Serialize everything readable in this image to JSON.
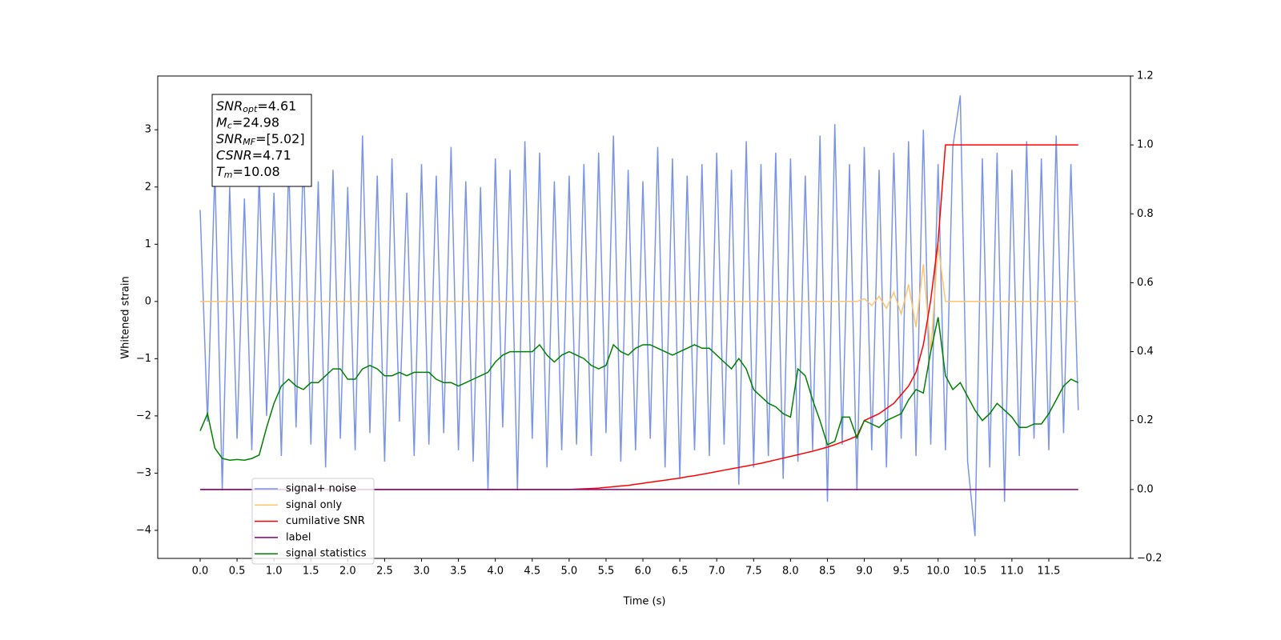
{
  "chart_data": {
    "type": "line",
    "xlabel": "Time (s)",
    "ylabel": "Whitened strain",
    "annotation_lines": [
      {
        "main": "SNR",
        "sub": "opt",
        "rest": "=4.61"
      },
      {
        "main": "M",
        "sub": "c",
        "rest": "=24.98"
      },
      {
        "main": "SNR",
        "sub": "MF",
        "rest": "=[5.02]"
      },
      {
        "main": "CSNR",
        "sub": null,
        "rest": "=4.71"
      },
      {
        "main": "T",
        "sub": "m",
        "rest": "=10.08"
      }
    ],
    "xlim": [
      -0.575,
      12.607
    ],
    "xticks": [
      {
        "value": 0,
        "label": "0.0"
      },
      0.5,
      {
        "value": 1,
        "label": "1.0"
      },
      1.5,
      {
        "value": 2,
        "label": "2.0"
      },
      2.5,
      {
        "value": 3,
        "label": "3.0"
      },
      3.5,
      {
        "value": 4,
        "label": "4.0"
      },
      4.5,
      {
        "value": 5,
        "label": "5.0"
      },
      5.5,
      {
        "value": 6,
        "label": "6.0"
      },
      6.5,
      {
        "value": 7,
        "label": "7.0"
      },
      7.5,
      {
        "value": 8,
        "label": "8.0"
      },
      8.5,
      {
        "value": 9,
        "label": "9.0"
      },
      9.5,
      {
        "value": 10,
        "label": "10.0"
      },
      10.5,
      {
        "value": 11,
        "label": "11.0"
      },
      11.5
    ],
    "ylim": [
      -4.49,
      3.94
    ],
    "yticks": [
      {
        "value": -4,
        "label": "−4"
      },
      {
        "value": -3,
        "label": "−3"
      },
      {
        "value": -2,
        "label": "−2"
      },
      {
        "value": -1,
        "label": "−1"
      },
      0,
      1,
      2,
      3
    ],
    "y2lim": [
      -0.2,
      1.2
    ],
    "y2ticks": [
      {
        "value": -0.2,
        "label": "−0.2"
      },
      {
        "value": 0,
        "label": "0.0"
      },
      0.2,
      0.4,
      0.6,
      0.8,
      {
        "value": 1,
        "label": "1.0"
      },
      1.2
    ],
    "legend": "lower left",
    "x": [
      0,
      0.1,
      0.2,
      0.3,
      0.4,
      0.5,
      0.6,
      0.7,
      0.8,
      0.9,
      1,
      1.1,
      1.2,
      1.3,
      1.4,
      1.5,
      1.6,
      1.7,
      1.8,
      1.9,
      2,
      2.1,
      2.2,
      2.3,
      2.4,
      2.5,
      2.6,
      2.7,
      2.8,
      2.9,
      3,
      3.1,
      3.2,
      3.3,
      3.4,
      3.5,
      3.6,
      3.7,
      3.8,
      3.9,
      4,
      4.1,
      4.2,
      4.3,
      4.4,
      4.5,
      4.6,
      4.7,
      4.8,
      4.9,
      5,
      5.1,
      5.2,
      5.3,
      5.4,
      5.5,
      5.6,
      5.7,
      5.8,
      5.9,
      6,
      6.1,
      6.2,
      6.3,
      6.4,
      6.5,
      6.6,
      6.7,
      6.8,
      6.9,
      7,
      7.1,
      7.2,
      7.3,
      7.4,
      7.5,
      7.6,
      7.7,
      7.8,
      7.9,
      8,
      8.1,
      8.2,
      8.3,
      8.4,
      8.5,
      8.6,
      8.7,
      8.8,
      8.9,
      9,
      9.1,
      9.2,
      9.3,
      9.4,
      9.5,
      9.6,
      9.7,
      9.8,
      9.9,
      10,
      10.1,
      10.2,
      10.3,
      10.4,
      10.5,
      10.6,
      10.7,
      10.8,
      10.9,
      11,
      11.1,
      11.2,
      11.3,
      11.4,
      11.5,
      11.6,
      11.7,
      11.8,
      11.9
    ],
    "series": [
      {
        "name": "signal+ noise",
        "color": "#7b95e6",
        "values": [
          1.6,
          -2.1,
          2.3,
          -3.3,
          2.0,
          -2.4,
          1.8,
          -2.6,
          2.2,
          -2.0,
          1.9,
          -2.7,
          2.4,
          -2.2,
          2.6,
          -2.5,
          2.1,
          -2.9,
          2.3,
          -2.4,
          2.0,
          -2.6,
          2.9,
          -2.3,
          2.2,
          -2.8,
          2.5,
          -2.1,
          1.9,
          -2.7,
          2.4,
          -2.5,
          2.2,
          -2.3,
          2.7,
          -2.6,
          2.1,
          -2.8,
          2.0,
          -3.3,
          2.5,
          -2.2,
          2.3,
          -3.3,
          2.8,
          -2.4,
          2.6,
          -2.9,
          2.1,
          -2.6,
          2.2,
          -2.5,
          2.4,
          -2.7,
          2.6,
          -2.3,
          2.9,
          -2.8,
          2.3,
          -2.6,
          2.1,
          -2.4,
          2.7,
          -2.9,
          2.5,
          -3.1,
          2.2,
          -2.6,
          2.4,
          -2.7,
          2.6,
          -2.5,
          2.3,
          -3.2,
          2.8,
          -2.9,
          2.4,
          -2.7,
          2.6,
          -3.1,
          2.5,
          -2.8,
          2.2,
          -2.6,
          2.9,
          -3.5,
          3.1,
          -2.5,
          2.4,
          -3.3,
          2.7,
          -2.6,
          2.3,
          -2.9,
          2.6,
          -2.4,
          2.8,
          -2.7,
          3.0,
          -2.5,
          2.4,
          -2.6,
          2.7,
          3.6,
          -2.8,
          -4.1,
          2.5,
          -2.9,
          2.6,
          -3.5,
          2.3,
          -2.7,
          2.8,
          -2.4,
          2.5,
          -2.6,
          2.9,
          -2.3,
          2.4,
          -1.9
        ]
      },
      {
        "name": "signal only",
        "color": "#ffc46b",
        "values": [
          0,
          0,
          0,
          0,
          0,
          0,
          0,
          0,
          0,
          0,
          0,
          0,
          0,
          0,
          0,
          0,
          0,
          0,
          0,
          0,
          0,
          0,
          0,
          0,
          0,
          0,
          0,
          0,
          0,
          0,
          0,
          0,
          0,
          0,
          0,
          0,
          0,
          0,
          0,
          0,
          0,
          0,
          0,
          0,
          0,
          0,
          0,
          0,
          0,
          0,
          0,
          0,
          0,
          0,
          0,
          0,
          0,
          0,
          0,
          0,
          0,
          0,
          0,
          0,
          0,
          0,
          0,
          0,
          0,
          0,
          0,
          0,
          0,
          0,
          0,
          0,
          0,
          0,
          0,
          0,
          0,
          0,
          0,
          0,
          0,
          0,
          0,
          0,
          0,
          0,
          0.05,
          -0.07,
          0.09,
          -0.12,
          0.16,
          -0.22,
          0.3,
          -0.45,
          0.65,
          -0.9,
          1.0,
          0,
          0,
          0,
          0,
          0,
          0,
          0,
          0,
          0,
          0,
          0,
          0,
          0,
          0,
          0,
          0,
          0,
          0,
          0
        ]
      },
      {
        "name": "cumilative SNR",
        "color": "#ff0000",
        "axis": "y2",
        "values": [
          0,
          0,
          0,
          0,
          0,
          0,
          0,
          0,
          0,
          0,
          0,
          0,
          0,
          0,
          0,
          0,
          0,
          0,
          0,
          0,
          0,
          0,
          0,
          0,
          0,
          0,
          0,
          0,
          0,
          0,
          0,
          0,
          0,
          0,
          0,
          0,
          0,
          0,
          0,
          0,
          0,
          0,
          0,
          0,
          0,
          0,
          0,
          0,
          0,
          0,
          0,
          0.001,
          0.002,
          0.003,
          0.004,
          0.006,
          0.008,
          0.01,
          0.012,
          0.015,
          0.018,
          0.021,
          0.024,
          0.027,
          0.03,
          0.033,
          0.037,
          0.04,
          0.044,
          0.048,
          0.052,
          0.056,
          0.06,
          0.064,
          0.068,
          0.072,
          0.076,
          0.081,
          0.086,
          0.091,
          0.096,
          0.101,
          0.106,
          0.111,
          0.117,
          0.123,
          0.13,
          0.138,
          0.146,
          0.155,
          0.2,
          0.21,
          0.22,
          0.235,
          0.25,
          0.275,
          0.3,
          0.34,
          0.42,
          0.55,
          0.72,
          1,
          1,
          1,
          1,
          1,
          1,
          1,
          1,
          1,
          1,
          1,
          1,
          1,
          1,
          1,
          1,
          1,
          1,
          1
        ]
      },
      {
        "name": "label",
        "color": "#800080",
        "axis": "y2",
        "values": [
          0,
          0,
          0,
          0,
          0,
          0,
          0,
          0,
          0,
          0,
          0,
          0,
          0,
          0,
          0,
          0,
          0,
          0,
          0,
          0,
          0,
          0,
          0,
          0,
          0,
          0,
          0,
          0,
          0,
          0,
          0,
          0,
          0,
          0,
          0,
          0,
          0,
          0,
          0,
          0,
          0,
          0,
          0,
          0,
          0,
          0,
          0,
          0,
          0,
          0,
          0,
          0,
          0,
          0,
          0,
          0,
          0,
          0,
          0,
          0,
          0,
          0,
          0,
          0,
          0,
          0,
          0,
          0,
          0,
          0,
          0,
          0,
          0,
          0,
          0,
          0,
          0,
          0,
          0,
          0,
          0,
          0,
          0,
          0,
          0,
          0,
          0,
          0,
          0,
          0,
          0,
          0,
          0,
          0,
          0,
          0,
          0,
          0,
          0,
          0,
          0,
          0,
          0,
          0,
          0,
          0,
          0,
          0,
          0,
          0,
          0,
          0,
          0,
          0,
          0,
          0,
          0,
          0,
          0,
          0
        ]
      },
      {
        "name": "signal statistics",
        "color": "#008000",
        "axis": "y2",
        "values": [
          0.17,
          0.22,
          0.12,
          0.09,
          0.085,
          0.087,
          0.085,
          0.09,
          0.1,
          0.18,
          0.25,
          0.3,
          0.32,
          0.3,
          0.29,
          0.31,
          0.31,
          0.33,
          0.35,
          0.35,
          0.32,
          0.32,
          0.35,
          0.36,
          0.35,
          0.33,
          0.33,
          0.34,
          0.33,
          0.34,
          0.34,
          0.34,
          0.32,
          0.31,
          0.31,
          0.3,
          0.31,
          0.32,
          0.33,
          0.34,
          0.37,
          0.39,
          0.4,
          0.4,
          0.4,
          0.4,
          0.42,
          0.39,
          0.37,
          0.39,
          0.4,
          0.39,
          0.38,
          0.36,
          0.35,
          0.36,
          0.42,
          0.4,
          0.39,
          0.41,
          0.42,
          0.42,
          0.41,
          0.4,
          0.39,
          0.4,
          0.41,
          0.42,
          0.41,
          0.41,
          0.39,
          0.37,
          0.35,
          0.38,
          0.35,
          0.29,
          0.27,
          0.25,
          0.24,
          0.22,
          0.21,
          0.35,
          0.33,
          0.26,
          0.2,
          0.13,
          0.14,
          0.21,
          0.21,
          0.15,
          0.2,
          0.19,
          0.18,
          0.2,
          0.21,
          0.22,
          0.26,
          0.29,
          0.28,
          0.4,
          0.5,
          0.33,
          0.29,
          0.31,
          0.27,
          0.23,
          0.2,
          0.22,
          0.25,
          0.23,
          0.21,
          0.18,
          0.18,
          0.19,
          0.19,
          0.22,
          0.26,
          0.3,
          0.32,
          0.31
        ]
      }
    ]
  }
}
